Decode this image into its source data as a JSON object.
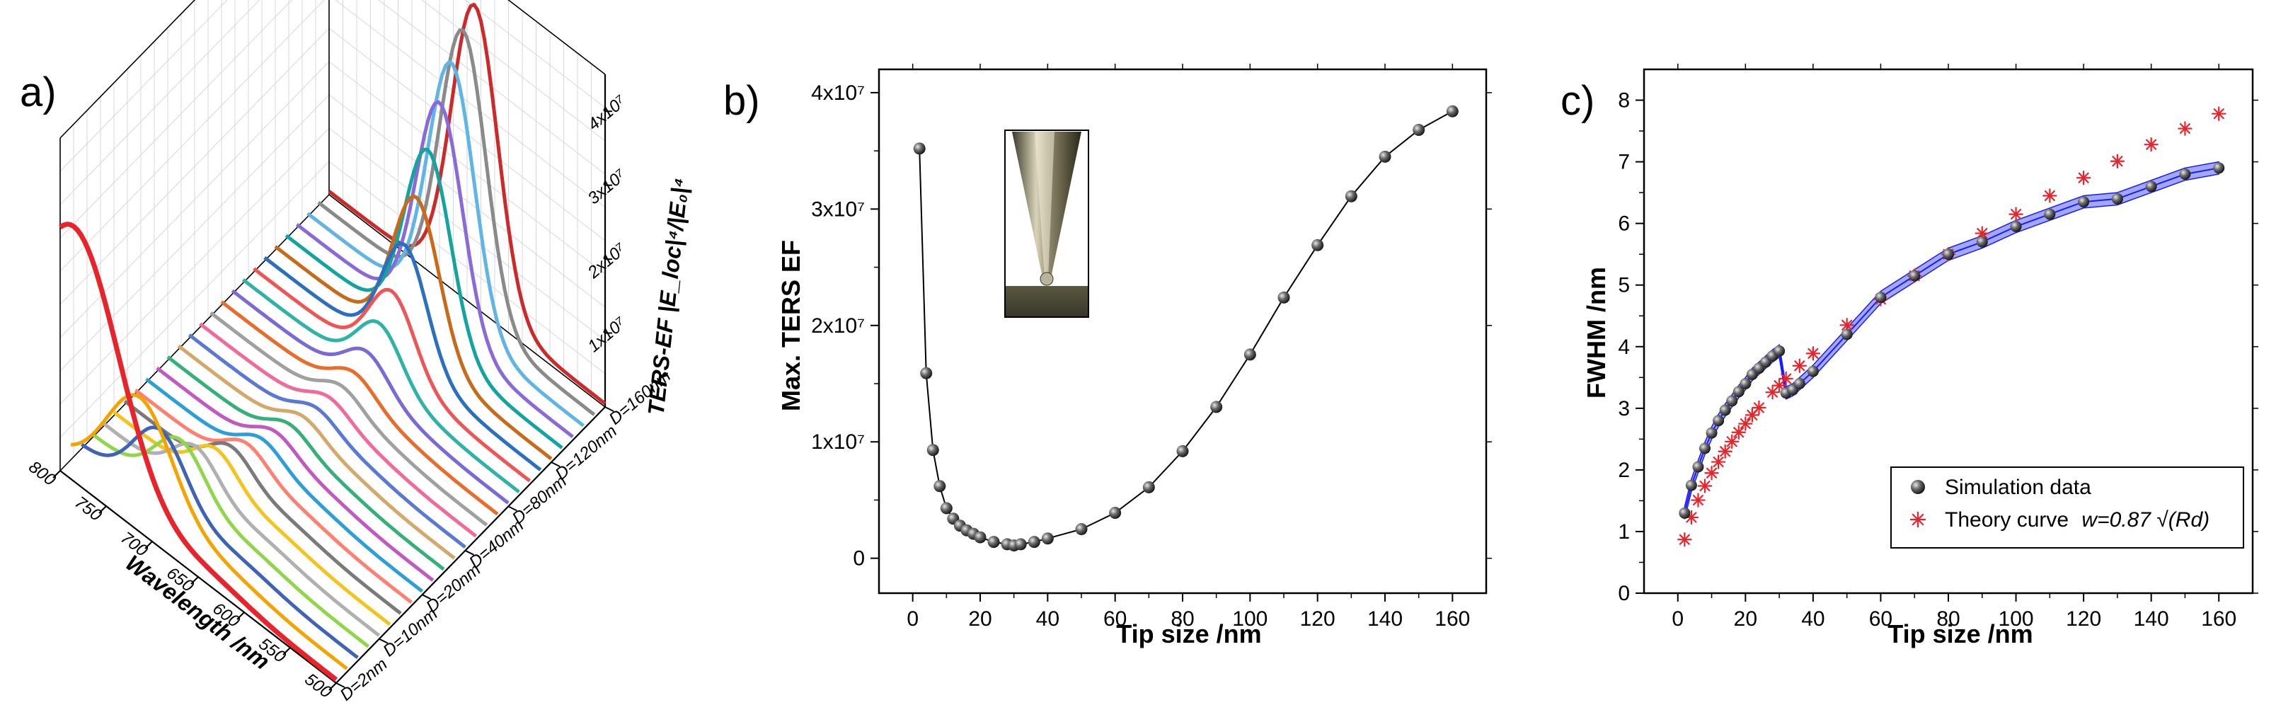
{
  "colors": {
    "marker_fill": "#4a4a4a",
    "sim_line": "#1a1aff",
    "band_fill": "#a3a8f5",
    "theory_marker": "#e8232a",
    "grid": "#d7d7d7",
    "axis": "#000000"
  },
  "chart_data": [
    {
      "panel": "a)",
      "type": "area",
      "style": "3d-waterfall",
      "x_label": "Wavelength /nm",
      "x_ticks": [
        "800",
        "750",
        "700",
        "650",
        "600",
        "550",
        "500"
      ],
      "z_label": "TERS-EF |E_loc|⁴/|E₀|⁴",
      "z_ticks": [
        "1x10⁷",
        "2x10⁷",
        "3x10⁷",
        "4x10⁷"
      ],
      "depth_ticks": [
        "D=2nm",
        "D=10nm",
        "D=20nm",
        "D=40nm",
        "D=80nm",
        "D=120nm",
        "D=160nm"
      ],
      "wavelength_range": [
        500,
        800
      ],
      "z_range": [
        0,
        45000000
      ],
      "series_colors": [
        "#e8232a",
        "#f4a300",
        "#3f64b5",
        "#8fd64a",
        "#b0b0b0",
        "#f3c41d",
        "#7a7a7a",
        "#ff8070",
        "#2d9fd8",
        "#c05ac0",
        "#36b07a",
        "#d4a76a",
        "#5a78d6",
        "#f06a9a",
        "#a0a0a0",
        "#e86c2a",
        "#7a6ad8",
        "#2fb3a6",
        "#ee5555",
        "#2a6fc0",
        "#c86a1a",
        "#13a3a0",
        "#8a6ad8",
        "#5fb5e5",
        "#8a8a8a",
        "#cc2a2a"
      ],
      "series_peaks": [
        {
          "peak_nm": 785,
          "peak_value": 34000000,
          "width_nm": 70
        },
        {
          "peak_nm": 725,
          "peak_value": 15000000,
          "width_nm": 50
        },
        {
          "peak_nm": 715,
          "peak_value": 10000000,
          "width_nm": 40
        },
        {
          "peak_nm": 705,
          "peak_value": 8000000,
          "width_nm": 38
        },
        {
          "peak_nm": 700,
          "peak_value": 6000000,
          "width_nm": 35
        },
        {
          "peak_nm": 690,
          "peak_value": 5000000,
          "width_nm": 33
        },
        {
          "peak_nm": 685,
          "peak_value": 4200000,
          "width_nm": 32
        },
        {
          "peak_nm": 680,
          "peak_value": 3500000,
          "width_nm": 32
        },
        {
          "peak_nm": 675,
          "peak_value": 3000000,
          "width_nm": 31
        },
        {
          "peak_nm": 672,
          "peak_value": 2700000,
          "width_nm": 31
        },
        {
          "peak_nm": 668,
          "peak_value": 2500000,
          "width_nm": 30
        },
        {
          "peak_nm": 665,
          "peak_value": 2300000,
          "width_nm": 30
        },
        {
          "peak_nm": 662,
          "peak_value": 2200000,
          "width_nm": 30
        },
        {
          "peak_nm": 660,
          "peak_value": 2300000,
          "width_nm": 30
        },
        {
          "peak_nm": 658,
          "peak_value": 2500000,
          "width_nm": 30
        },
        {
          "peak_nm": 656,
          "peak_value": 3000000,
          "width_nm": 31
        },
        {
          "peak_nm": 654,
          "peak_value": 4500000,
          "width_nm": 32
        },
        {
          "peak_nm": 652,
          "peak_value": 7000000,
          "width_nm": 33
        },
        {
          "peak_nm": 650,
          "peak_value": 10000000,
          "width_nm": 34
        },
        {
          "peak_nm": 648,
          "peak_value": 15000000,
          "width_nm": 34
        },
        {
          "peak_nm": 647,
          "peak_value": 20000000,
          "width_nm": 35
        },
        {
          "peak_nm": 646,
          "peak_value": 25000000,
          "width_nm": 35
        },
        {
          "peak_nm": 645,
          "peak_value": 30000000,
          "width_nm": 35
        },
        {
          "peak_nm": 644,
          "peak_value": 34000000,
          "width_nm": 35
        },
        {
          "peak_nm": 643,
          "peak_value": 37000000,
          "width_nm": 35
        },
        {
          "peak_nm": 642,
          "peak_value": 39000000,
          "width_nm": 35
        }
      ]
    },
    {
      "panel": "b)",
      "type": "line",
      "markers": true,
      "xlabel": "Tip size /nm",
      "ylabel": "Max. TERS EF",
      "xlim": [
        -10,
        170
      ],
      "ylim": [
        -3000000,
        42000000
      ],
      "x_ticks": [
        0,
        20,
        40,
        60,
        80,
        100,
        120,
        140,
        160
      ],
      "y_ticks": [
        0,
        10000000,
        20000000,
        30000000,
        40000000
      ],
      "y_tick_labels": [
        "0",
        "1x10⁷",
        "2x10⁷",
        "3x10⁷",
        "4x10⁷"
      ],
      "inset": "tip-illustration",
      "x": [
        2,
        4,
        6,
        8,
        10,
        12,
        14,
        16,
        18,
        20,
        24,
        28,
        30,
        32,
        36,
        40,
        50,
        60,
        70,
        80,
        90,
        100,
        110,
        120,
        130,
        140,
        150,
        160
      ],
      "y": [
        35200000,
        15900000,
        9300000,
        6200000,
        4300000,
        3400000,
        2800000,
        2400000,
        2100000,
        1800000,
        1400000,
        1200000,
        1100000,
        1200000,
        1400000,
        1700000,
        2500000,
        3900000,
        6100000,
        9200000,
        13000000,
        17500000,
        22400000,
        26900000,
        31100000,
        34500000,
        36800000,
        38400000
      ]
    },
    {
      "panel": "c)",
      "type": "scatter",
      "xlabel": "Tip size /nm",
      "ylabel": "FWHM /nm",
      "xlim": [
        -10,
        170
      ],
      "ylim": [
        0,
        8.5
      ],
      "x_ticks": [
        0,
        20,
        40,
        60,
        80,
        100,
        120,
        140,
        160
      ],
      "y_ticks": [
        0,
        1,
        2,
        3,
        4,
        5,
        6,
        7,
        8
      ],
      "legend_position": "bottom-right",
      "series": [
        {
          "name": "Simulation data",
          "marker": "sphere",
          "x": [
            2,
            4,
            6,
            8,
            10,
            12,
            14,
            16,
            18,
            20,
            22,
            24,
            26,
            28,
            30,
            32,
            34,
            36,
            40,
            50,
            60,
            70,
            80,
            90,
            100,
            110,
            120,
            130,
            140,
            150,
            160
          ],
          "y": [
            1.3,
            1.75,
            2.05,
            2.35,
            2.6,
            2.8,
            2.97,
            3.12,
            3.27,
            3.4,
            3.55,
            3.65,
            3.75,
            3.85,
            3.93,
            3.25,
            3.3,
            3.4,
            3.6,
            4.2,
            4.8,
            5.15,
            5.5,
            5.7,
            5.95,
            6.15,
            6.35,
            6.4,
            6.6,
            6.8,
            6.9
          ],
          "band_halfwidth": 0.1
        },
        {
          "name": "Theory curve",
          "equation": "w=0.87 √(Rd)",
          "marker": "asterisk",
          "x": [
            2,
            4,
            6,
            8,
            10,
            12,
            14,
            16,
            18,
            20,
            22,
            24,
            28,
            30,
            32,
            36,
            40,
            50,
            60,
            70,
            80,
            90,
            100,
            110,
            120,
            130,
            140,
            150,
            160
          ],
          "y": [
            0.87,
            1.23,
            1.51,
            1.74,
            1.95,
            2.13,
            2.3,
            2.46,
            2.61,
            2.75,
            2.89,
            3.01,
            3.26,
            3.37,
            3.48,
            3.69,
            3.89,
            4.35,
            4.77,
            5.15,
            5.5,
            5.84,
            6.15,
            6.45,
            6.74,
            7.01,
            7.28,
            7.54,
            7.78
          ]
        }
      ]
    }
  ]
}
